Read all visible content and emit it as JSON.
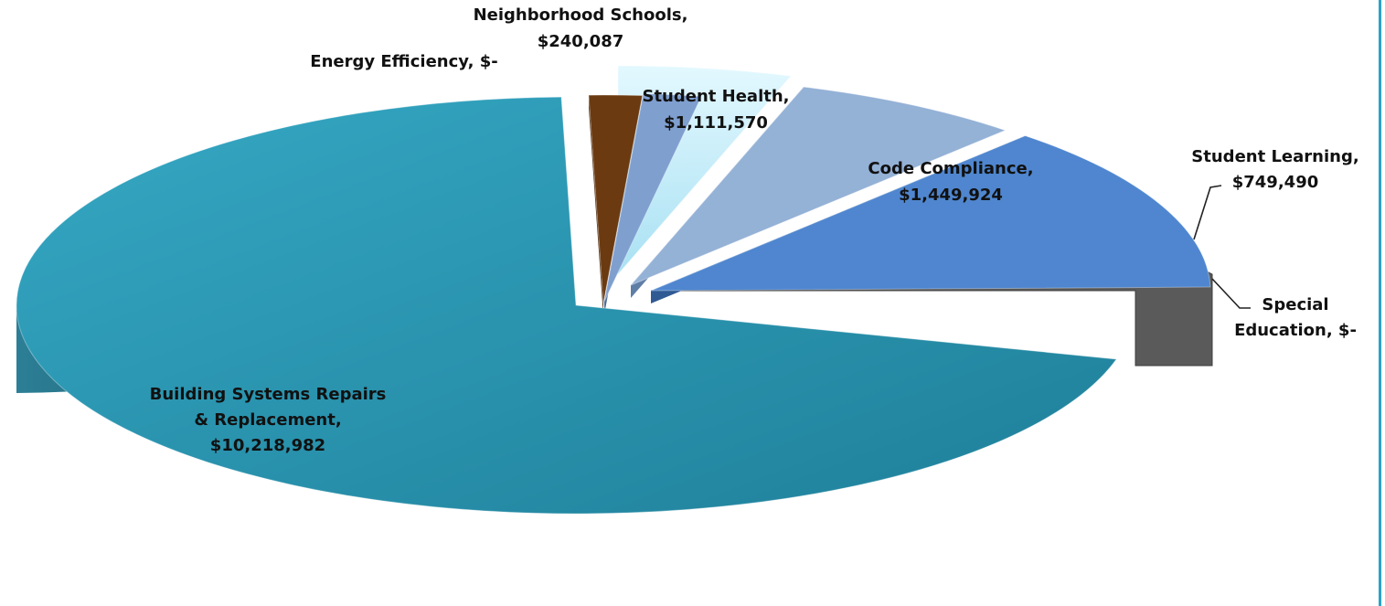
{
  "chart_data": {
    "type": "pie",
    "style": "3d-exploded",
    "title": "",
    "slices": [
      {
        "name": "Building Systems Repairs & Replacement",
        "value": 10218982,
        "label_lines": [
          "Building Systems Repairs",
          "& Replacement,",
          "$10,218,982"
        ],
        "color": "#2a9ab5"
      },
      {
        "name": "Energy Efficiency",
        "value": 0,
        "label_lines": [
          "Energy Efficiency,  $-"
        ],
        "color": "#6b3a10"
      },
      {
        "name": "Neighborhood Schools",
        "value": 240087,
        "label_lines": [
          "Neighborhood Schools,",
          "$240,087"
        ],
        "color": "#7f9fcf"
      },
      {
        "name": "Student Health",
        "value": 1111570,
        "label_lines": [
          "Student Health,",
          "$1,111,570"
        ],
        "color": "#c9eefa"
      },
      {
        "name": "Code Compliance",
        "value": 1449924,
        "label_lines": [
          "Code Compliance,",
          "$1,449,924"
        ],
        "color": "#94b1d6"
      },
      {
        "name": "Student Learning",
        "value": 749490,
        "label_lines": [
          "Student Learning,",
          "$749,490"
        ],
        "color": "#4f86cf"
      },
      {
        "name": "Special Education",
        "value": 0,
        "label_lines": [
          "Special",
          "Education,  $-"
        ],
        "color": "#5f5f5f"
      }
    ]
  }
}
